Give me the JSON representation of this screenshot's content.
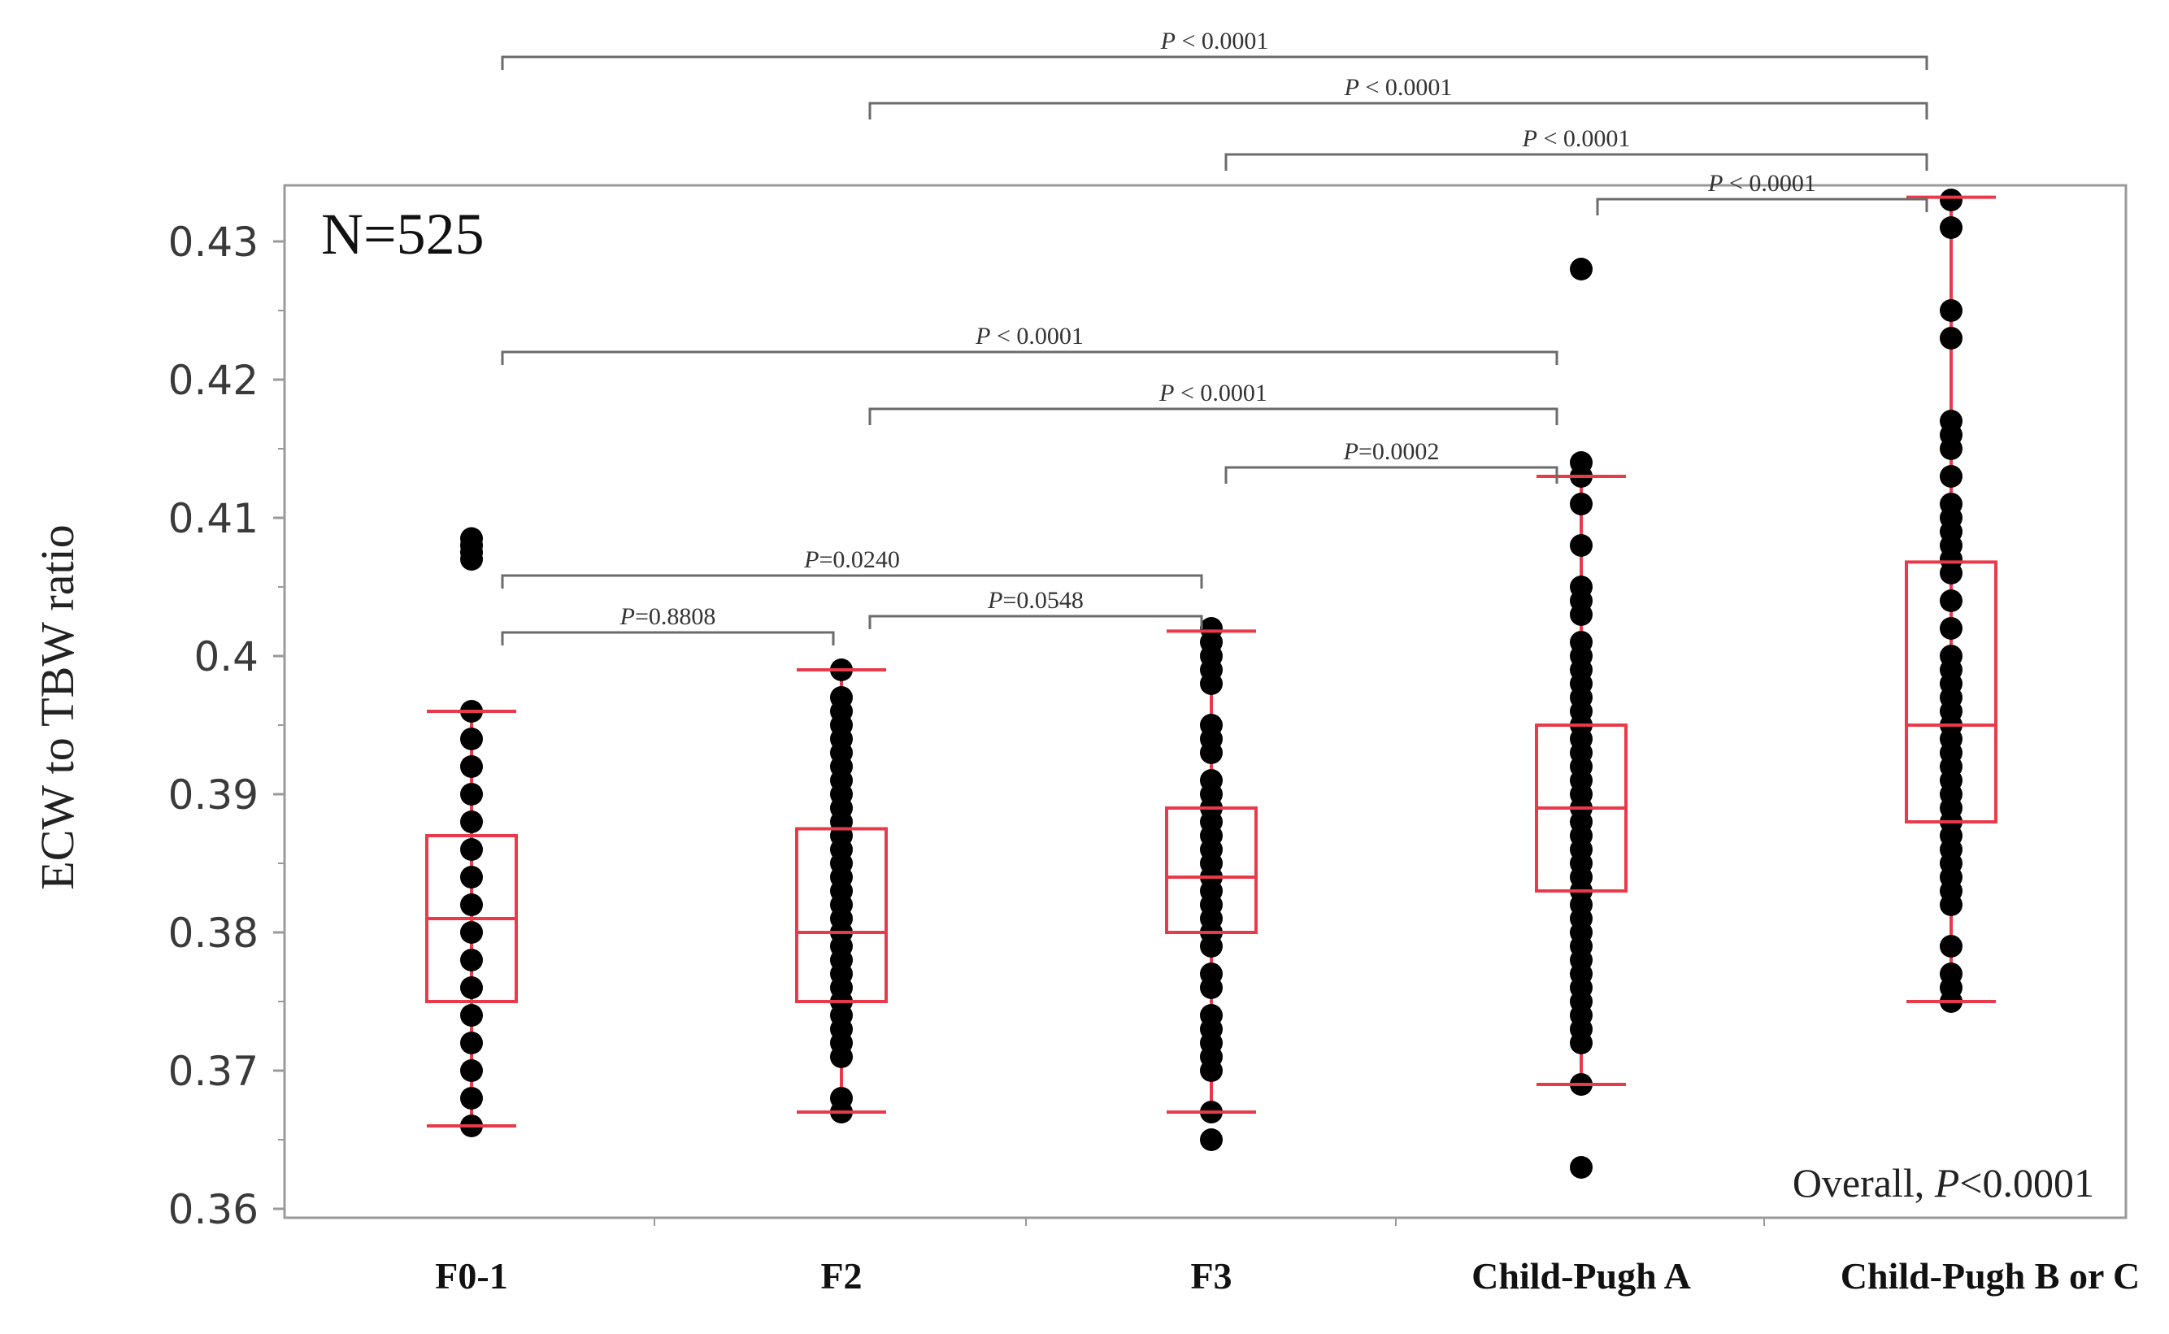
{
  "chart_data": {
    "type": "box",
    "ylabel": "ECW to TBW ratio",
    "ylim": [
      0.36,
      0.43
    ],
    "yticks": [
      "0.36",
      "0.37",
      "0.38",
      "0.39",
      "0.4",
      "0.41",
      "0.42",
      "0.43"
    ],
    "categories": [
      "F0-1",
      "F2",
      "F3",
      "Child-Pugh A",
      "Child-Pugh B or C"
    ],
    "box_color": "#e83a4a",
    "point_color": "#000000",
    "boxes": [
      {
        "min": 0.366,
        "q1": 0.375,
        "median": 0.381,
        "q3": 0.387,
        "max": 0.396
      },
      {
        "min": 0.367,
        "q1": 0.375,
        "median": 0.38,
        "q3": 0.3875,
        "max": 0.399
      },
      {
        "min": 0.367,
        "q1": 0.38,
        "median": 0.384,
        "q3": 0.389,
        "max": 0.4018
      },
      {
        "min": 0.369,
        "q1": 0.383,
        "median": 0.389,
        "q3": 0.395,
        "max": 0.413
      },
      {
        "min": 0.375,
        "q1": 0.388,
        "median": 0.395,
        "q3": 0.4068,
        "max": 0.4332
      }
    ],
    "points": [
      {
        "category": "F0-1",
        "values": [
          0.366,
          0.368,
          0.37,
          0.372,
          0.374,
          0.376,
          0.378,
          0.38,
          0.382,
          0.384,
          0.386,
          0.388,
          0.39,
          0.392,
          0.394,
          0.396
        ],
        "outliers": [
          0.407,
          0.4075,
          0.408,
          0.4085
        ]
      },
      {
        "category": "F2",
        "values": [
          0.367,
          0.368,
          0.371,
          0.372,
          0.373,
          0.374,
          0.375,
          0.376,
          0.377,
          0.378,
          0.379,
          0.38,
          0.381,
          0.382,
          0.383,
          0.384,
          0.385,
          0.386,
          0.387,
          0.388,
          0.389,
          0.39,
          0.391,
          0.392,
          0.393,
          0.394,
          0.395,
          0.396,
          0.397,
          0.399
        ]
      },
      {
        "category": "F3",
        "values": [
          0.365,
          0.367,
          0.37,
          0.371,
          0.372,
          0.373,
          0.374,
          0.376,
          0.377,
          0.379,
          0.38,
          0.381,
          0.382,
          0.383,
          0.384,
          0.385,
          0.386,
          0.387,
          0.388,
          0.389,
          0.39,
          0.391,
          0.393,
          0.394,
          0.395,
          0.398,
          0.399,
          0.4,
          0.401,
          0.402
        ]
      },
      {
        "category": "Child-Pugh A",
        "values": [
          0.369,
          0.372,
          0.373,
          0.374,
          0.375,
          0.376,
          0.377,
          0.378,
          0.379,
          0.38,
          0.381,
          0.382,
          0.383,
          0.384,
          0.385,
          0.386,
          0.387,
          0.388,
          0.389,
          0.39,
          0.391,
          0.392,
          0.393,
          0.394,
          0.395,
          0.396,
          0.397,
          0.398,
          0.399,
          0.4,
          0.401,
          0.403,
          0.404,
          0.405,
          0.408,
          0.411,
          0.413,
          0.414
        ],
        "outliers": [
          0.363,
          0.428
        ]
      },
      {
        "category": "Child-Pugh B or C",
        "values": [
          0.375,
          0.376,
          0.377,
          0.379,
          0.382,
          0.383,
          0.384,
          0.385,
          0.386,
          0.387,
          0.388,
          0.389,
          0.39,
          0.391,
          0.392,
          0.393,
          0.394,
          0.395,
          0.396,
          0.397,
          0.398,
          0.399,
          0.4,
          0.402,
          0.404,
          0.406,
          0.407,
          0.408,
          0.409,
          0.41,
          0.411,
          0.413,
          0.415,
          0.416,
          0.417,
          0.423,
          0.425,
          0.431,
          0.433
        ]
      }
    ],
    "annotations": {
      "n_label": "N=525",
      "overall_prefix": "Overall, ",
      "overall_p": "P",
      "overall_suffix": "<0.0001"
    },
    "comparisons": [
      {
        "from": 0,
        "to": 1,
        "p": "P",
        "text": "=0.8808"
      },
      {
        "from": 1,
        "to": 2,
        "p": "P",
        "text": "=0.0548"
      },
      {
        "from": 0,
        "to": 2,
        "p": "P",
        "text": "=0.0240"
      },
      {
        "from": 2,
        "to": 3,
        "p": "P",
        "text": "=0.0002"
      },
      {
        "from": 1,
        "to": 3,
        "p": "P",
        "text": " < 0.0001"
      },
      {
        "from": 0,
        "to": 3,
        "p": "P",
        "text": " < 0.0001"
      },
      {
        "from": 3,
        "to": 4,
        "p": "P",
        "text": " < 0.0001"
      },
      {
        "from": 2,
        "to": 4,
        "p": "P",
        "text": " < 0.0001"
      },
      {
        "from": 1,
        "to": 4,
        "p": "P",
        "text": " < 0.0001"
      },
      {
        "from": 0,
        "to": 4,
        "p": "P",
        "text": " < 0.0001"
      }
    ]
  }
}
